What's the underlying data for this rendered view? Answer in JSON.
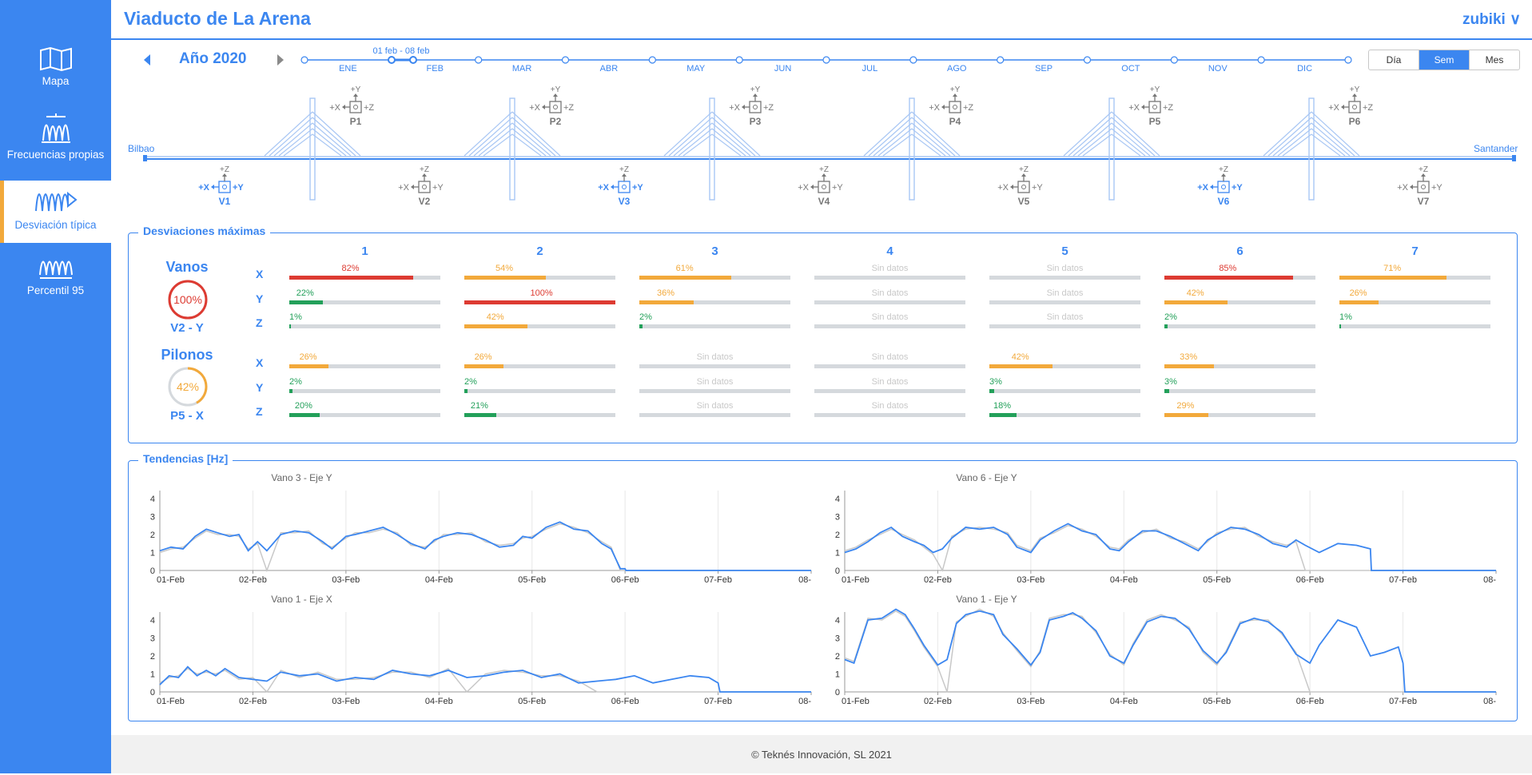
{
  "app_title": "Viaducto de La Arena",
  "user": "zubiki ∨",
  "footer": "© Teknés Innovación, SL 2021",
  "sidebar": [
    {
      "label": "Mapa",
      "icon": "map-icon",
      "active": false
    },
    {
      "label": "Frecuencias propias",
      "icon": "frequency-icon",
      "active": false
    },
    {
      "label": "Desviación típica",
      "icon": "deviation-icon",
      "active": true
    },
    {
      "label": "Percentil 95",
      "icon": "percentile-icon",
      "active": false
    }
  ],
  "timeline": {
    "year": "Año 2020",
    "week_label": "01 feb - 08 feb",
    "months": [
      "ENE",
      "FEB",
      "MAR",
      "ABR",
      "MAY",
      "JUN",
      "JUL",
      "AGO",
      "SEP",
      "OCT",
      "NOV",
      "DIC"
    ],
    "period_buttons": [
      {
        "label": "Día",
        "active": false
      },
      {
        "label": "Sem",
        "active": true
      },
      {
        "label": "Mes",
        "active": false
      }
    ]
  },
  "bridge": {
    "left_end": "Bilbao",
    "right_end": "Santander",
    "pylons": [
      "P1",
      "P2",
      "P3",
      "P4",
      "P5",
      "P6"
    ],
    "spans": [
      {
        "label": "V1",
        "highlight": true
      },
      {
        "label": "V2",
        "highlight": false
      },
      {
        "label": "V3",
        "highlight": true
      },
      {
        "label": "V4",
        "highlight": false
      },
      {
        "label": "V5",
        "highlight": false
      },
      {
        "label": "V6",
        "highlight": true
      },
      {
        "label": "V7",
        "highlight": false
      }
    ],
    "axis_labels": {
      "x_minus": "+X",
      "x_plus": "+Z",
      "y_up": "+Y",
      "z_up": "+Z",
      "y_right": "+Y",
      "pylon_x": "+X"
    }
  },
  "deviations": {
    "title": "Desviaciones máximas",
    "no_data": "Sin datos",
    "columns": [
      "1",
      "2",
      "3",
      "4",
      "5",
      "6",
      "7"
    ],
    "axes": [
      "X",
      "Y",
      "Z"
    ],
    "vanos": {
      "label": "Vanos",
      "max_value": "100%",
      "max_fraction": 1.0,
      "max_location": "V2 - Y",
      "rows": [
        [
          82,
          54,
          61,
          null,
          null,
          85,
          71
        ],
        [
          22,
          100,
          36,
          null,
          null,
          42,
          26
        ],
        [
          1,
          42,
          2,
          null,
          null,
          2,
          1
        ]
      ]
    },
    "pilonos": {
      "label": "Pilonos",
      "max_value": "42%",
      "max_fraction": 0.42,
      "max_location": "P5 - X",
      "rows": [
        [
          26,
          26,
          null,
          null,
          42,
          33
        ],
        [
          2,
          2,
          null,
          null,
          3,
          3
        ],
        [
          20,
          21,
          null,
          null,
          18,
          29
        ]
      ]
    },
    "colors": {
      "green": "#23a05a",
      "orange": "#f2a93b",
      "red": "#dd3b32",
      "track": "#d5d9dd",
      "no_data": "#c8c8c8"
    }
  },
  "trends": {
    "title": "Tendencias [Hz]",
    "x_ticks": [
      "01-Feb",
      "02-Feb",
      "03-Feb",
      "04-Feb",
      "05-Feb",
      "06-Feb",
      "07-Feb",
      "08-"
    ]
  },
  "chart_data": [
    {
      "type": "line",
      "title": "Vano 3 - Eje Y",
      "ylim": [
        0,
        4
      ],
      "yticks": [
        0,
        1,
        2,
        3,
        4
      ],
      "x_days": [
        0,
        0.12,
        0.25,
        0.38,
        0.5,
        0.62,
        0.75,
        0.85,
        0.95,
        1.05,
        1.15,
        1.3,
        1.45,
        1.6,
        1.75,
        1.85,
        2.0,
        2.1,
        2.25,
        2.4,
        2.55,
        2.7,
        2.85,
        2.95,
        3.05,
        3.2,
        3.35,
        3.5,
        3.65,
        3.8,
        3.9,
        4.0,
        4.15,
        4.3,
        4.45,
        4.6,
        4.75,
        4.85,
        4.95,
        5.0,
        5.01,
        7.0
      ],
      "series": [
        {
          "values": [
            1.1,
            1.3,
            1.2,
            1.9,
            2.3,
            2.1,
            1.9,
            2.0,
            1.1,
            1.6,
            1.1,
            2.0,
            2.2,
            2.1,
            1.6,
            1.2,
            1.9,
            2.0,
            2.2,
            2.4,
            2.0,
            1.5,
            1.2,
            1.7,
            1.9,
            2.1,
            2.0,
            1.7,
            1.3,
            1.4,
            1.9,
            1.8,
            2.4,
            2.7,
            2.3,
            2.2,
            1.5,
            1.2,
            0.1,
            0.1,
            0.0,
            0.0
          ],
          "color": "#3b86f0"
        },
        {
          "values": [
            1.0,
            1.2,
            1.3,
            1.8,
            2.2,
            2.0,
            2.0,
            1.9,
            1.2,
            1.5,
            0.0,
            2.1,
            2.1,
            2.2,
            1.5,
            1.3,
            1.8,
            2.1,
            2.1,
            2.3,
            2.1,
            1.4,
            1.3,
            1.6,
            2.0,
            2.0,
            2.1,
            1.6,
            1.4,
            1.5,
            1.8,
            1.9,
            2.3,
            2.6,
            2.4,
            2.1,
            1.6,
            1.3,
            0.0,
            0.0,
            0.0,
            0.0
          ],
          "color": "#c8c8c8"
        }
      ]
    },
    {
      "type": "line",
      "title": "Vano 6 - Eje Y",
      "ylim": [
        0,
        4
      ],
      "yticks": [
        0,
        1,
        2,
        3,
        4
      ],
      "x_days": [
        0,
        0.12,
        0.25,
        0.38,
        0.5,
        0.62,
        0.75,
        0.85,
        0.95,
        1.05,
        1.15,
        1.3,
        1.45,
        1.6,
        1.75,
        1.85,
        2.0,
        2.1,
        2.25,
        2.4,
        2.55,
        2.7,
        2.85,
        2.95,
        3.05,
        3.2,
        3.35,
        3.5,
        3.65,
        3.8,
        3.9,
        4.0,
        4.15,
        4.3,
        4.45,
        4.6,
        4.75,
        4.85,
        4.95,
        5.1,
        5.3,
        5.5,
        5.65,
        5.66,
        7.0
      ],
      "series": [
        {
          "values": [
            1.0,
            1.2,
            1.6,
            2.1,
            2.4,
            1.9,
            1.6,
            1.4,
            1.0,
            1.2,
            1.8,
            2.4,
            2.3,
            2.4,
            2.0,
            1.3,
            1.0,
            1.7,
            2.2,
            2.6,
            2.2,
            2.0,
            1.2,
            1.1,
            1.6,
            2.2,
            2.2,
            1.9,
            1.5,
            1.1,
            1.7,
            2.0,
            2.4,
            2.3,
            2.0,
            1.5,
            1.3,
            1.7,
            1.4,
            1.0,
            1.5,
            1.4,
            1.2,
            0.0,
            0.0
          ],
          "color": "#3b86f0"
        },
        {
          "values": [
            1.1,
            1.3,
            1.7,
            2.0,
            2.3,
            2.0,
            1.7,
            1.3,
            0.9,
            0.0,
            1.9,
            2.3,
            2.4,
            2.3,
            2.1,
            1.4,
            1.1,
            1.8,
            2.1,
            2.5,
            2.3,
            1.9,
            1.3,
            1.2,
            1.7,
            2.1,
            2.3,
            1.8,
            1.6,
            1.2,
            1.6,
            2.1,
            2.3,
            2.4,
            1.9,
            1.6,
            1.4,
            1.6,
            0.0,
            0.0,
            0.0,
            0.0,
            0.0,
            0.0,
            0.0
          ],
          "color": "#c8c8c8"
        }
      ]
    },
    {
      "type": "line",
      "title": "Vano 1 - Eje X",
      "ylim": [
        0,
        4
      ],
      "yticks": [
        0,
        1,
        2,
        3,
        4
      ],
      "x_days": [
        0,
        0.1,
        0.2,
        0.3,
        0.4,
        0.5,
        0.6,
        0.7,
        0.85,
        1.0,
        1.15,
        1.3,
        1.5,
        1.7,
        1.9,
        2.1,
        2.3,
        2.5,
        2.7,
        2.9,
        3.1,
        3.3,
        3.5,
        3.7,
        3.9,
        4.1,
        4.3,
        4.5,
        4.7,
        4.9,
        5.1,
        5.3,
        5.5,
        5.7,
        5.9,
        6.0,
        6.02,
        7.0
      ],
      "series": [
        {
          "values": [
            0.4,
            0.9,
            0.8,
            1.4,
            0.9,
            1.2,
            0.9,
            1.3,
            0.8,
            0.7,
            0.6,
            1.1,
            0.9,
            1.0,
            0.6,
            0.8,
            0.7,
            1.2,
            1.0,
            0.9,
            1.2,
            0.8,
            0.9,
            1.1,
            1.2,
            0.8,
            1.0,
            0.5,
            0.6,
            0.7,
            0.9,
            0.5,
            0.7,
            0.9,
            0.8,
            0.5,
            0.0,
            0.0
          ],
          "color": "#3b86f0"
        },
        {
          "values": [
            0.5,
            0.8,
            0.9,
            1.3,
            1.0,
            1.1,
            1.0,
            1.2,
            0.7,
            0.8,
            0.0,
            1.2,
            0.8,
            1.1,
            0.7,
            0.7,
            0.8,
            1.1,
            1.1,
            0.8,
            1.3,
            0.0,
            1.0,
            1.2,
            1.1,
            0.9,
            0.9,
            0.6,
            0.0,
            0.0,
            0.0,
            0.0,
            0.0,
            0.0,
            0.0,
            0.0,
            0.0,
            0.0
          ],
          "color": "#c8c8c8"
        }
      ]
    },
    {
      "type": "line",
      "title": "Vano 1 - Eje Y",
      "ylim": [
        0,
        4
      ],
      "yticks": [
        0,
        1,
        2,
        3,
        4
      ],
      "x_days": [
        0,
        0.1,
        0.25,
        0.4,
        0.55,
        0.65,
        0.75,
        0.85,
        1.0,
        1.1,
        1.2,
        1.3,
        1.45,
        1.6,
        1.7,
        1.85,
        2.0,
        2.1,
        2.2,
        2.35,
        2.45,
        2.55,
        2.7,
        2.85,
        3.0,
        3.1,
        3.25,
        3.4,
        3.55,
        3.7,
        3.85,
        4.0,
        4.1,
        4.25,
        4.4,
        4.55,
        4.7,
        4.85,
        5.0,
        5.1,
        5.3,
        5.5,
        5.65,
        5.8,
        5.95,
        6.0,
        6.02,
        7.0
      ],
      "series": [
        {
          "values": [
            1.8,
            1.6,
            4.0,
            4.1,
            4.6,
            4.3,
            3.5,
            2.6,
            1.5,
            1.8,
            3.8,
            4.3,
            4.5,
            4.3,
            3.2,
            2.4,
            1.5,
            2.2,
            4.0,
            4.2,
            4.4,
            4.1,
            3.4,
            2.0,
            1.6,
            2.6,
            3.9,
            4.2,
            4.1,
            3.5,
            2.3,
            1.6,
            2.2,
            3.8,
            4.1,
            3.9,
            3.3,
            2.1,
            1.6,
            2.6,
            4.0,
            3.6,
            2.0,
            2.2,
            2.5,
            1.6,
            0.0,
            0.0
          ],
          "color": "#3b86f0"
        },
        {
          "values": [
            1.9,
            1.7,
            4.1,
            4.0,
            4.5,
            4.2,
            3.4,
            2.5,
            1.4,
            0.0,
            3.9,
            4.2,
            4.6,
            4.2,
            3.3,
            2.3,
            1.4,
            2.3,
            4.1,
            4.3,
            4.3,
            4.2,
            3.3,
            2.1,
            1.5,
            2.7,
            4.0,
            4.3,
            4.0,
            3.6,
            2.2,
            1.5,
            2.3,
            3.9,
            4.0,
            4.0,
            3.2,
            2.2,
            0.0,
            0.0,
            0.0,
            0.0,
            0.0,
            0.0,
            0.0,
            0.0,
            0.0,
            0.0
          ],
          "color": "#c8c8c8"
        }
      ]
    }
  ]
}
